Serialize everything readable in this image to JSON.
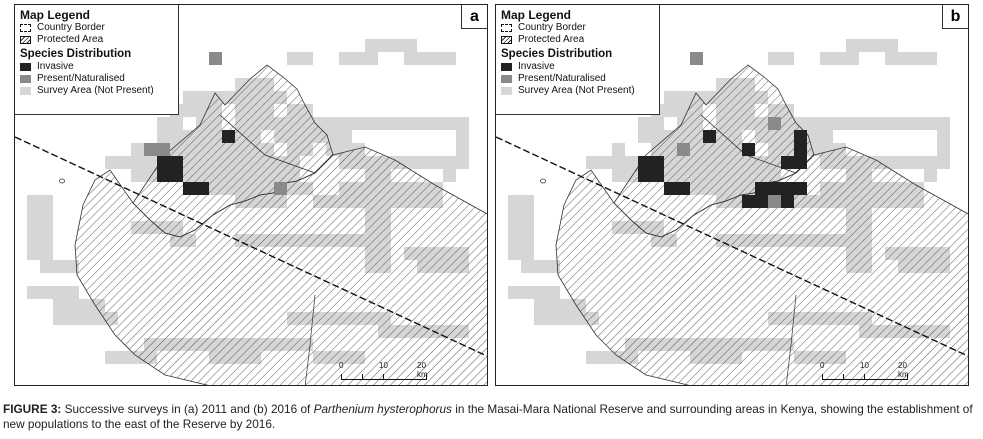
{
  "legend": {
    "title": "Map Legend",
    "border_label": "Country Border",
    "protected_label": "Protected Area",
    "species_title": "Species Distribution",
    "invasive_label": "Invasive",
    "present_label": "Present/Naturalised",
    "survey_label": "Survey Area (Not Present)"
  },
  "colors": {
    "invasive": "#222222",
    "present": "#8a8a8a",
    "survey": "#d6d6d6",
    "hatch": "#333333"
  },
  "scale": {
    "labels": [
      "0",
      "10",
      "20 km"
    ]
  },
  "panels": [
    {
      "id": "a",
      "letter": "a",
      "invasive_cells": [
        [
          10,
          11
        ],
        [
          11,
          11
        ],
        [
          10,
          12
        ],
        [
          11,
          12
        ],
        [
          12,
          13
        ],
        [
          13,
          13
        ],
        [
          15,
          9
        ]
      ],
      "present_cells": [
        [
          9,
          10
        ],
        [
          10,
          10
        ],
        [
          19,
          13
        ],
        [
          14,
          3
        ]
      ]
    },
    {
      "id": "b",
      "letter": "b",
      "invasive_cells": [
        [
          10,
          11
        ],
        [
          11,
          11
        ],
        [
          10,
          12
        ],
        [
          11,
          12
        ],
        [
          12,
          13
        ],
        [
          13,
          13
        ],
        [
          15,
          9
        ],
        [
          18,
          10
        ],
        [
          22,
          9
        ],
        [
          22,
          10
        ],
        [
          21,
          11
        ],
        [
          22,
          11
        ],
        [
          19,
          13
        ],
        [
          20,
          13
        ],
        [
          22,
          13
        ],
        [
          21,
          13
        ],
        [
          18,
          14
        ],
        [
          19,
          14
        ],
        [
          21,
          14
        ]
      ],
      "present_cells": [
        [
          13,
          10
        ],
        [
          20,
          14
        ],
        [
          20,
          8
        ],
        [
          14,
          3
        ]
      ]
    }
  ],
  "caption": {
    "label": "FIGURE 3:",
    "text_1": " Successive surveys in (a) 2011 and (b) 2016 of ",
    "species": "Parthenium hysterophorus",
    "text_2": " in the Masai-Mara National Reserve and surrounding areas in Kenya, showing the establishment of new populations to the east of the Reserve by 2016."
  }
}
